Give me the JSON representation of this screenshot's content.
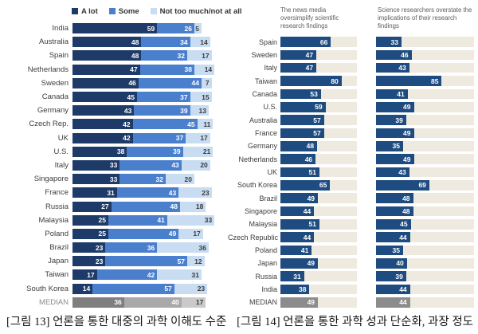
{
  "colors": {
    "a_lot": "#1e3a68",
    "some": "#4a7fce",
    "not_much": "#c8dcf2",
    "median_segments": [
      "#7f7f7f",
      "#a9a9a9",
      "#cacaca"
    ],
    "right_bar": "#1f4c80",
    "right_median_bar": "#8c8c8c",
    "track": "#eeeae0"
  },
  "left_chart": {
    "legend": [
      {
        "label": "A lot",
        "color": "#1e3a68"
      },
      {
        "label": "Some",
        "color": "#4a7fce"
      },
      {
        "label": "Not too much/not at all",
        "color": "#c8dcf2"
      }
    ]
  },
  "right_chart": {
    "col1_header": "The news media oversimplify scientific research findings",
    "col2_header": "Science researchers overstate the implications of their research findings"
  },
  "captions": {
    "fig13": "[그림 13] 언론을 통한 대중의 과학 이해도 수준",
    "fig14": "[그림 14] 언론을 통한 과학 성과 단순화, 과장 정도"
  },
  "chart_data": [
    {
      "type": "bar",
      "orientation": "horizontal",
      "stacked": true,
      "title": "",
      "legend_position": "top",
      "xlim": [
        0,
        100
      ],
      "categories": [
        "India",
        "Australia",
        "Spain",
        "Netherlands",
        "Sweden",
        "Canada",
        "Germany",
        "Czech Rep.",
        "UK",
        "U.S.",
        "Italy",
        "Singapore",
        "France",
        "Russia",
        "Malaysia",
        "Poland",
        "Brazil",
        "Japan",
        "Taiwan",
        "South Korea",
        "MEDIAN"
      ],
      "series": [
        {
          "name": "A lot",
          "values": [
            59,
            48,
            48,
            47,
            46,
            45,
            43,
            42,
            42,
            38,
            33,
            33,
            31,
            27,
            25,
            25,
            23,
            23,
            17,
            14,
            36
          ]
        },
        {
          "name": "Some",
          "values": [
            26,
            34,
            32,
            38,
            44,
            37,
            39,
            45,
            37,
            39,
            43,
            32,
            43,
            48,
            41,
            49,
            36,
            57,
            42,
            57,
            40
          ]
        },
        {
          "name": "Not too much/not at all",
          "values": [
            5,
            14,
            17,
            14,
            7,
            15,
            13,
            11,
            17,
            21,
            20,
            20,
            23,
            18,
            33,
            17,
            36,
            12,
            31,
            23,
            17
          ]
        }
      ]
    },
    {
      "type": "bar",
      "orientation": "horizontal",
      "stacked": false,
      "title": "",
      "xlim": [
        0,
        100
      ],
      "categories": [
        "Spain",
        "Sweden",
        "Italy",
        "Taiwan",
        "Canada",
        "U.S.",
        "Australia",
        "France",
        "Germany",
        "Netherlands",
        "UK",
        "South Korea",
        "Brazil",
        "Singapore",
        "Malaysia",
        "Czech Republic",
        "Poland",
        "Japan",
        "Russia",
        "India",
        "MEDIAN"
      ],
      "series": [
        {
          "name": "The news media oversimplify scientific research findings",
          "values": [
            66,
            47,
            47,
            80,
            53,
            59,
            57,
            57,
            48,
            46,
            51,
            65,
            49,
            44,
            51,
            44,
            41,
            49,
            31,
            38,
            49
          ]
        },
        {
          "name": "Science researchers overstate the implications of their research findings",
          "values": [
            33,
            46,
            43,
            85,
            41,
            49,
            39,
            49,
            35,
            49,
            43,
            69,
            48,
            48,
            45,
            44,
            35,
            40,
            39,
            44,
            44
          ]
        }
      ]
    }
  ]
}
